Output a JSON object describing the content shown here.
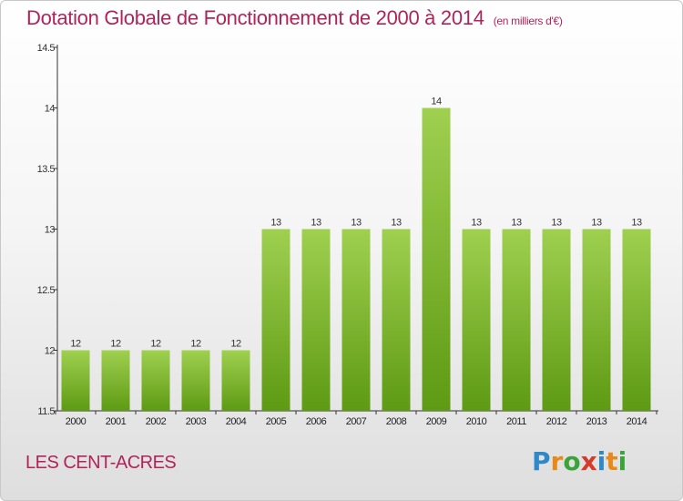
{
  "title": "Dotation Globale de Fonctionnement de 2000 à 2014",
  "unit_note": "(en milliers d'€)",
  "place_name": "LES CENT-ACRES",
  "logo": {
    "text": "Proxiti",
    "letters": [
      "P",
      "r",
      "o",
      "x",
      "i",
      "t",
      "i"
    ]
  },
  "colors": {
    "title": "#b0245a",
    "bar_top": "#9fd04f",
    "bar_bottom": "#5e9a14",
    "axis": "#333333"
  },
  "chart_data": {
    "type": "bar",
    "categories": [
      "2000",
      "2001",
      "2002",
      "2003",
      "2004",
      "2005",
      "2006",
      "2007",
      "2008",
      "2009",
      "2010",
      "2011",
      "2012",
      "2013",
      "2014"
    ],
    "values": [
      12,
      12,
      12,
      12,
      12,
      13,
      13,
      13,
      13,
      14,
      13,
      13,
      13,
      13,
      13
    ],
    "data_labels": [
      "12",
      "12",
      "12",
      "12",
      "12",
      "13",
      "13",
      "13",
      "13",
      "14",
      "13",
      "13",
      "13",
      "13",
      "13"
    ],
    "yticks": [
      "11.5",
      "12",
      "12.5",
      "13",
      "13.5",
      "14",
      "14.5"
    ],
    "ylim": [
      11.5,
      14.5
    ],
    "title": "Dotation Globale de Fonctionnement de 2000 à 2014",
    "xlabel": "",
    "ylabel": "",
    "grid": false,
    "legend": "none"
  }
}
